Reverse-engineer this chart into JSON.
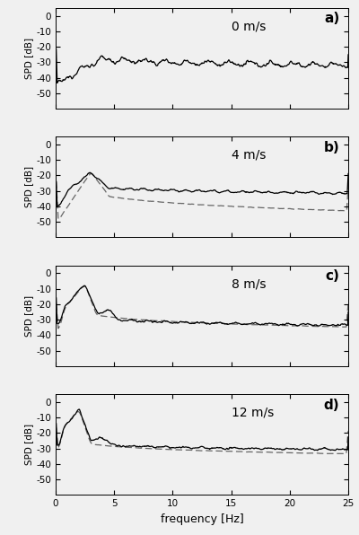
{
  "panels": [
    {
      "label": "a)",
      "wind_speed": "0 m/s",
      "ylim": [
        -60,
        5
      ],
      "yticks": [
        0,
        -10,
        -20,
        -30,
        -40,
        -50
      ],
      "has_dashed": false
    },
    {
      "label": "b)",
      "wind_speed": "4 m/s",
      "ylim": [
        -60,
        5
      ],
      "yticks": [
        0,
        -10,
        -20,
        -30,
        -40,
        -50
      ],
      "has_dashed": true
    },
    {
      "label": "c)",
      "wind_speed": "8 m/s",
      "ylim": [
        -60,
        5
      ],
      "yticks": [
        0,
        -10,
        -20,
        -30,
        -40,
        -50
      ],
      "has_dashed": true
    },
    {
      "label": "d)",
      "wind_speed": "12 m/s",
      "ylim": [
        -60,
        5
      ],
      "yticks": [
        0,
        -10,
        -20,
        -30,
        -40,
        -50
      ],
      "has_dashed": true
    }
  ],
  "xlim": [
    0,
    25
  ],
  "xticks": [
    0,
    5,
    10,
    15,
    20,
    25
  ],
  "xlabel": "frequency [Hz]",
  "ylabel": "SPD [dB]",
  "line_color": "#000000",
  "dashed_color": "#666666",
  "background_color": "#f0f0f0",
  "figsize": [
    4.0,
    5.96
  ],
  "dpi": 100
}
